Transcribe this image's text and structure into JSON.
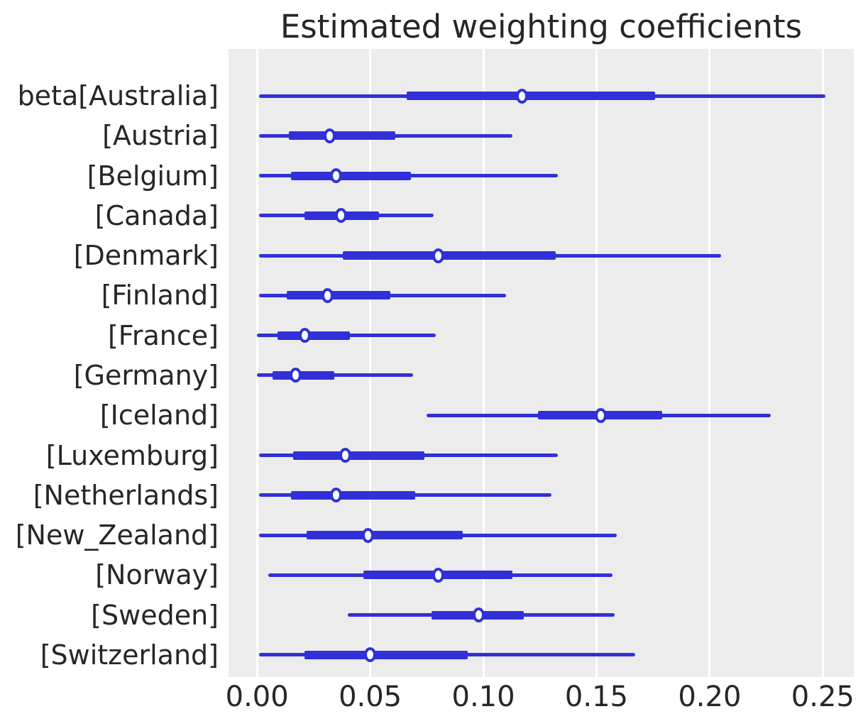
{
  "chart_data": {
    "type": "forest",
    "title": "Estimated weighting coefficients",
    "xlabel": "",
    "ylabel": "",
    "orientation": "horizontal",
    "legend": false,
    "grid": "vertical only, white on gray panel",
    "xlim": [
      -0.0126,
      0.2637
    ],
    "xticks": [
      "0.00",
      "0.05",
      "0.10",
      "0.15",
      "0.20",
      "0.25"
    ],
    "xtick_values": [
      0.0,
      0.05,
      0.1,
      0.15,
      0.2,
      0.25
    ],
    "rows": [
      {
        "label": "beta[Australia]",
        "outer_interval": [
          0.001,
          0.251
        ],
        "inner_interval": [
          0.066,
          0.176
        ],
        "point": 0.117
      },
      {
        "label": "[Austria]",
        "outer_interval": [
          0.001,
          0.113
        ],
        "inner_interval": [
          0.014,
          0.061
        ],
        "point": 0.032
      },
      {
        "label": "[Belgium]",
        "outer_interval": [
          0.001,
          0.133
        ],
        "inner_interval": [
          0.015,
          0.068
        ],
        "point": 0.035
      },
      {
        "label": "[Canada]",
        "outer_interval": [
          0.001,
          0.078
        ],
        "inner_interval": [
          0.021,
          0.054
        ],
        "point": 0.037
      },
      {
        "label": "[Denmark]",
        "outer_interval": [
          0.001,
          0.205
        ],
        "inner_interval": [
          0.038,
          0.132
        ],
        "point": 0.08
      },
      {
        "label": "[Finland]",
        "outer_interval": [
          0.001,
          0.11
        ],
        "inner_interval": [
          0.013,
          0.059
        ],
        "point": 0.031
      },
      {
        "label": "[France]",
        "outer_interval": [
          0.0,
          0.079
        ],
        "inner_interval": [
          0.009,
          0.041
        ],
        "point": 0.021
      },
      {
        "label": "[Germany]",
        "outer_interval": [
          0.0,
          0.069
        ],
        "inner_interval": [
          0.007,
          0.034
        ],
        "point": 0.017
      },
      {
        "label": "[Iceland]",
        "outer_interval": [
          0.075,
          0.227
        ],
        "inner_interval": [
          0.124,
          0.179
        ],
        "point": 0.152
      },
      {
        "label": "[Luxemburg]",
        "outer_interval": [
          0.001,
          0.133
        ],
        "inner_interval": [
          0.016,
          0.074
        ],
        "point": 0.039
      },
      {
        "label": "[Netherlands]",
        "outer_interval": [
          0.001,
          0.13
        ],
        "inner_interval": [
          0.015,
          0.07
        ],
        "point": 0.035
      },
      {
        "label": "[New_Zealand]",
        "outer_interval": [
          0.001,
          0.159
        ],
        "inner_interval": [
          0.022,
          0.091
        ],
        "point": 0.049
      },
      {
        "label": "[Norway]",
        "outer_interval": [
          0.005,
          0.157
        ],
        "inner_interval": [
          0.047,
          0.113
        ],
        "point": 0.08
      },
      {
        "label": "[Sweden]",
        "outer_interval": [
          0.04,
          0.158
        ],
        "inner_interval": [
          0.077,
          0.118
        ],
        "point": 0.098
      },
      {
        "label": "[Switzerland]",
        "outer_interval": [
          0.001,
          0.167
        ],
        "inner_interval": [
          0.021,
          0.093
        ],
        "point": 0.05
      }
    ],
    "colors": {
      "line": "#3130d8",
      "marker_face": "#ffffff",
      "marker_edge": "#3130d8",
      "panel_background": "#ececec",
      "gridline": "#ffffff",
      "text": "#262626",
      "figure_background": "#ffffff"
    }
  }
}
